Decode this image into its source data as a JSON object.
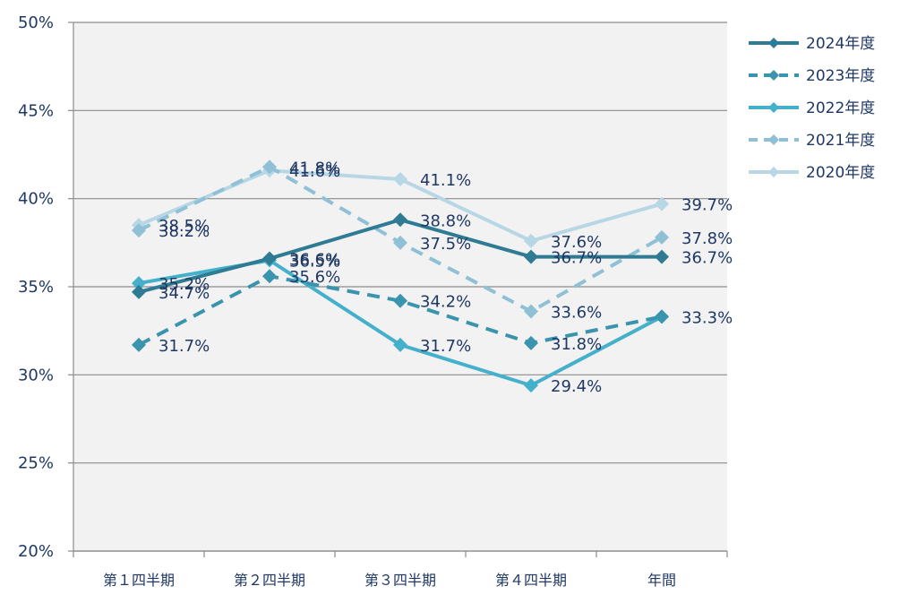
{
  "chart_data": {
    "type": "line",
    "categories": [
      "第１四半期",
      "第２四半期",
      "第３四半期",
      "第４四半期",
      "年間"
    ],
    "ylim": [
      20,
      50
    ],
    "yticks": [
      "20%",
      "25%",
      "30%",
      "35%",
      "40%",
      "45%",
      "50%"
    ],
    "ytick_values": [
      20,
      25,
      30,
      35,
      40,
      45,
      50
    ],
    "grid": true,
    "legend_position": "top-right",
    "series": [
      {
        "name": "2024年度",
        "values": [
          34.7,
          36.6,
          38.8,
          36.7,
          36.7
        ],
        "labels": [
          "34.7%",
          "36.6%",
          "38.8%",
          "36.7%",
          "36.7%"
        ],
        "color": "#2f7b93",
        "dashed": false
      },
      {
        "name": "2023年度",
        "values": [
          31.7,
          35.6,
          34.2,
          31.8,
          33.3
        ],
        "labels": [
          "31.7%",
          "35.6%",
          "34.2%",
          "31.8%",
          ""
        ],
        "color": "#3a94ae",
        "dashed": true
      },
      {
        "name": "2022年度",
        "values": [
          35.2,
          36.5,
          31.7,
          29.4,
          33.3
        ],
        "labels": [
          "35.2%",
          "36.5%",
          "31.7%",
          "29.4%",
          "33.3%"
        ],
        "color": "#45b0cb",
        "dashed": false
      },
      {
        "name": "2021年度",
        "values": [
          38.2,
          41.8,
          37.5,
          33.6,
          37.8
        ],
        "labels": [
          "38.2%",
          "41.8%",
          "37.5%",
          "33.6%",
          "37.8%"
        ],
        "color": "#8fc0d6",
        "dashed": true
      },
      {
        "name": "2020年度",
        "values": [
          38.5,
          41.6,
          41.1,
          37.6,
          39.7
        ],
        "labels": [
          "38.5%",
          "41.6%",
          "41.1%",
          "37.6%",
          "39.7%"
        ],
        "color": "#b8d7e5",
        "dashed": false
      }
    ]
  }
}
